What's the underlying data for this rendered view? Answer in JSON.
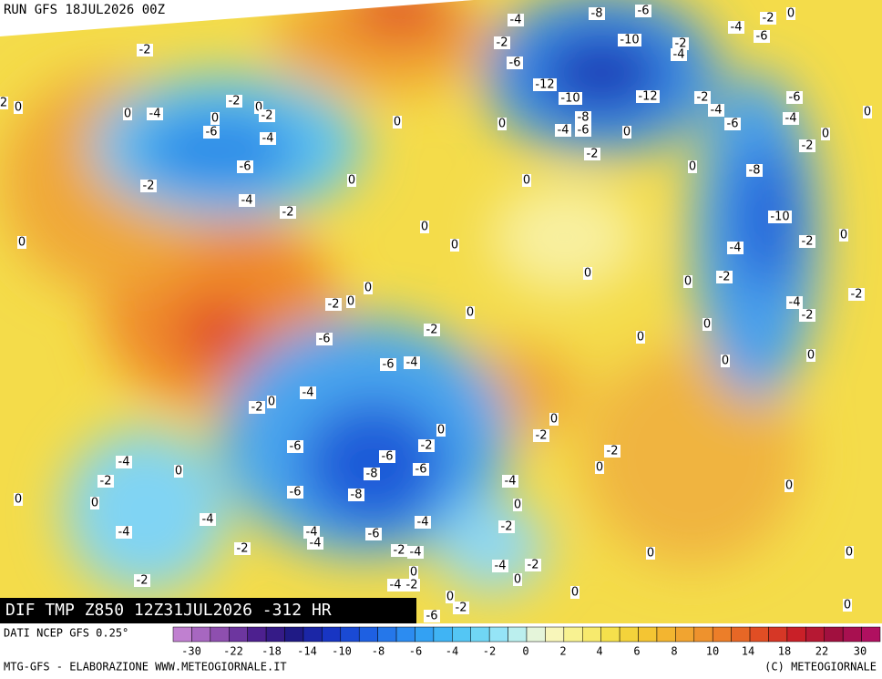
{
  "header": {
    "run": "RUN GFS 18JUL2026 00Z"
  },
  "map": {
    "title": "DIF TMP Z850 12Z31JUL2026 -312 HR",
    "contour_labels": [
      "-4",
      "-8",
      "-6",
      "-2",
      "0",
      "-4",
      "-6",
      "-2",
      "-10",
      "-2",
      "-4",
      "-6",
      "-12",
      "-10",
      "-12",
      "-2",
      "-6",
      "0",
      "-2",
      "0",
      "2",
      "0",
      "-4",
      "-2",
      "0",
      "-2",
      "0",
      "-8",
      "-4",
      "-6",
      "-4",
      "0",
      "0",
      "-4",
      "-6",
      "0",
      "0",
      "-2",
      "-6",
      "-4",
      "-2",
      "0",
      "-6",
      "0",
      "0",
      "-8",
      "-2",
      "-4",
      "-2",
      "-10",
      "0",
      "0",
      "0",
      "-4",
      "-2",
      "0",
      "0",
      "-2",
      "0",
      "0",
      "-2",
      "0",
      "-2",
      "-4",
      "-2",
      "0",
      "0",
      "-2",
      "-6",
      "0",
      "0",
      "0",
      "-6",
      "-4",
      "-4",
      "0",
      "-2",
      "0",
      "0",
      "-2",
      "-2",
      "-6",
      "-6",
      "-2",
      "-4",
      "0",
      "-8",
      "-6",
      "0",
      "-2",
      "-4",
      "0",
      "-6",
      "-8",
      "0",
      "0",
      "0",
      "-4",
      "-4",
      "-2",
      "-4",
      "-4",
      "-6",
      "-4",
      "-2",
      "-2",
      "-4",
      "0",
      "0",
      "-4",
      "-2",
      "0",
      "0",
      "-2",
      "-4",
      "-2",
      "0",
      "0",
      "0",
      "-2",
      "-6"
    ]
  },
  "legend": {
    "source": "DATI NCEP GFS 0.25°",
    "labels": [
      "-30",
      "-22",
      "-18",
      "-14",
      "-10",
      "-8",
      "-6",
      "-4",
      "-2",
      "0",
      "2",
      "4",
      "6",
      "8",
      "10",
      "14",
      "18",
      "22",
      "30"
    ]
  },
  "footer": {
    "credit": "MTG-GFS - ELABORAZIONE WWW.METEOGIORNALE.IT",
    "copyright": "(C) METEOGIORNALE"
  }
}
